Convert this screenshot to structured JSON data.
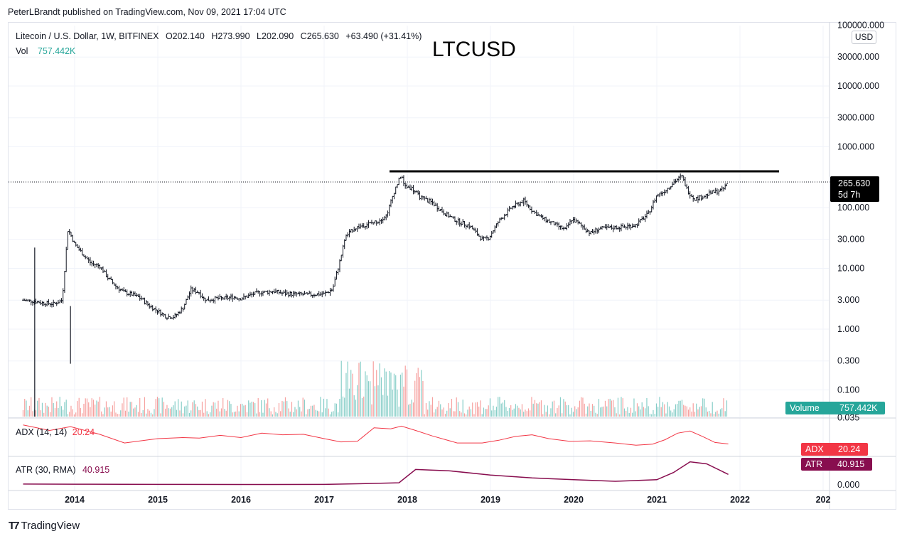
{
  "publisher_line": "PeterLBrandt published on TradingView.com, Nov 09, 2021 17:04 UTC",
  "title_overlay": "LTCUSD",
  "legend": {
    "symbol": "Litecoin / U.S. Dollar, 1W, BITFINEX",
    "open": "O202.140",
    "high": "H273.990",
    "low": "L202.090",
    "close": "C265.630",
    "change": "+63.490 (+31.41%)",
    "vol_label": "Vol",
    "vol_value": "757.442K"
  },
  "currency": "USD",
  "price_tag": {
    "value": "265.630",
    "countdown": "5d 7h"
  },
  "volume_tag": {
    "label": "Volume",
    "value": "757.442K"
  },
  "adx": {
    "label": "ADX (14, 14)",
    "value": "20.24",
    "tag_label": "ADX",
    "tag_value": "20.24"
  },
  "atr": {
    "label": "ATR (30, RMA)",
    "value": "40.915",
    "tag_label": "ATR",
    "tag_value": "40.915"
  },
  "footer_logo": "TradingView",
  "colors": {
    "up": "#26a69a",
    "down": "#ef5350",
    "candle": "#131722",
    "adx": "#f23645",
    "atr": "#880e4f",
    "grid": "#f0f3fa"
  },
  "chart_data": {
    "type": "line",
    "title": "LTCUSD",
    "y_scale": "log",
    "y_ticks": [
      "100000.000",
      "30000.000",
      "10000.000",
      "3000.000",
      "1000.000",
      "100.000",
      "30.000",
      "10.000",
      "3.000",
      "1.000",
      "0.300",
      "0.100",
      "0.035"
    ],
    "atr_tick": "0.000",
    "x_ticks": [
      "2014",
      "2015",
      "2016",
      "2017",
      "2018",
      "2019",
      "2020",
      "2021",
      "2022",
      "202"
    ],
    "resistance_level": 375,
    "last_price": 265.63,
    "series": [
      {
        "x": [
          2013.38,
          2013.5,
          2013.62,
          2013.75,
          2013.85,
          2013.92,
          2014.0,
          2014.1,
          2014.2,
          2014.3,
          2014.4,
          2014.5,
          2014.6,
          2014.7,
          2014.8,
          2014.9,
          2015.0,
          2015.1,
          2015.2,
          2015.3,
          2015.4,
          2015.5,
          2015.55,
          2015.6,
          2015.7,
          2015.8,
          2015.9,
          2016.0,
          2016.2,
          2016.4,
          2016.5,
          2016.6,
          2016.8,
          2017.0,
          2017.1,
          2017.2,
          2017.25,
          2017.35,
          2017.45,
          2017.55,
          2017.65,
          2017.75,
          2017.85,
          2017.93,
          2017.96,
          2018.05,
          2018.15,
          2018.3,
          2018.45,
          2018.6,
          2018.75,
          2018.9,
          2018.98,
          2019.1,
          2019.25,
          2019.4,
          2019.5,
          2019.6,
          2019.75,
          2019.9,
          2019.98,
          2020.1,
          2020.2,
          2020.3,
          2020.5,
          2020.6,
          2020.75,
          2020.9,
          2021.0,
          2021.1,
          2021.2,
          2021.3,
          2021.37,
          2021.45,
          2021.55,
          2021.65,
          2021.75,
          2021.8,
          2021.86
        ],
        "y": [
          3.0,
          2.9,
          2.7,
          2.6,
          3.0,
          45.0,
          25.0,
          17.0,
          12.0,
          11.0,
          7.0,
          5.0,
          4.0,
          3.7,
          3.2,
          2.4,
          2.0,
          1.6,
          1.6,
          2.2,
          4.5,
          4.0,
          3.2,
          3.0,
          3.2,
          3.2,
          3.4,
          3.2,
          4.0,
          4.2,
          3.9,
          3.8,
          3.7,
          3.8,
          4.5,
          15.0,
          32.0,
          45.0,
          50.0,
          55.0,
          60.0,
          75.0,
          200.0,
          350.0,
          230.0,
          210.0,
          150.0,
          120.0,
          80.0,
          60.0,
          50.0,
          30.0,
          32.0,
          60.0,
          100.0,
          130.0,
          90.0,
          70.0,
          55.0,
          43.0,
          65.0,
          50.0,
          38.0,
          45.0,
          47.0,
          48.0,
          52.0,
          80.0,
          160.0,
          190.0,
          260.0,
          330.0,
          190.0,
          140.0,
          150.0,
          175.0,
          190.0,
          200.0,
          265.63
        ]
      },
      {
        "name": "Vol",
        "values": "volume histogram bars (green/red) beneath price"
      },
      {
        "name": "ADX (14, 14)",
        "x": [
          2013.38,
          2013.7,
          2013.95,
          2014.3,
          2014.6,
          2014.85,
          2015.0,
          2015.3,
          2015.5,
          2015.75,
          2016.0,
          2016.25,
          2016.5,
          2016.75,
          2017.0,
          2017.2,
          2017.4,
          2017.6,
          2017.8,
          2017.93,
          2018.1,
          2018.3,
          2018.6,
          2018.9,
          2019.1,
          2019.3,
          2019.5,
          2019.7,
          2019.95,
          2020.2,
          2020.5,
          2020.75,
          2020.95,
          2021.1,
          2021.25,
          2021.4,
          2021.55,
          2021.7,
          2021.86
        ],
        "y": [
          55,
          45,
          52,
          38,
          22,
          27,
          30,
          32,
          31,
          36,
          32,
          40,
          37,
          38,
          30,
          24,
          25,
          50,
          48,
          53,
          45,
          35,
          22,
          22,
          27,
          34,
          37,
          30,
          25,
          26,
          22,
          18,
          20,
          28,
          40,
          44,
          34,
          23,
          20.24
        ]
      },
      {
        "name": "ATR (30, RMA)",
        "x": [
          2013.38,
          2014.0,
          2015.0,
          2016.0,
          2017.0,
          2017.5,
          2017.9,
          2018.1,
          2018.5,
          2019.0,
          2019.5,
          2020.0,
          2020.5,
          2021.0,
          2021.2,
          2021.4,
          2021.6,
          2021.86
        ],
        "y": [
          3,
          2.6,
          1.6,
          1.3,
          1.6,
          5,
          8,
          60,
          55,
          38,
          27,
          20,
          14,
          20,
          48,
          90,
          82,
          40.915
        ]
      }
    ]
  }
}
